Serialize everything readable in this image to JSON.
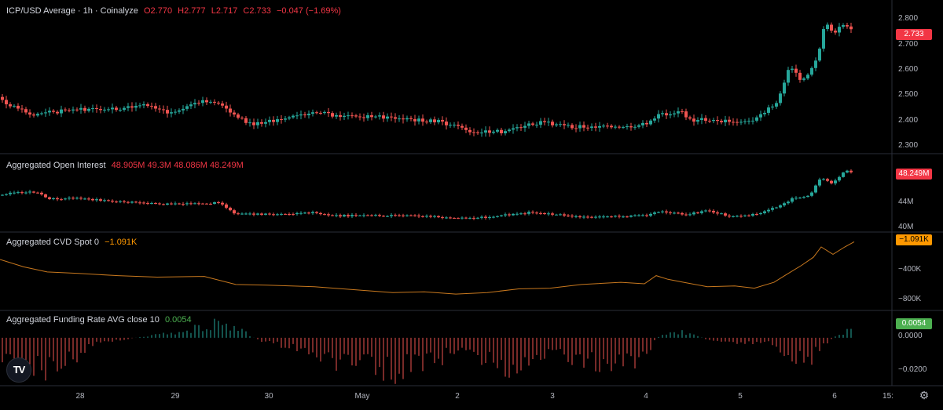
{
  "headers": {
    "price": {
      "label": "ICP/USD Average · 1h · Coinalyze",
      "o": "O2.770",
      "h": "H2.777",
      "l": "L2.717",
      "c": "C2.733",
      "chg": "−0.047 (−1.69%)"
    },
    "oi": {
      "label": "Aggregated Open Interest",
      "vals": "48.905M 49.3M 48.086M 48.249M"
    },
    "cvd": {
      "label": "Aggregated CVD Spot 0",
      "val": "−1.091K"
    },
    "funding": {
      "label": "Aggregated Funding Rate AVG close 10",
      "val": "0.0054"
    }
  },
  "badges": {
    "price": "2.733",
    "oi": "48.249M",
    "cvd": "−1.091K",
    "funding": "0.0054"
  },
  "colors": {
    "up": "#26a69a",
    "down": "#ef5350",
    "cvd_line": "#c8781e",
    "badge_red": "#f23645",
    "badge_orange": "#ff9800",
    "badge_green": "#4caf50",
    "grid": "#2a2e39"
  },
  "icons": {
    "logo": "tradingview-logo-icon",
    "settings": "gear-icon"
  },
  "logo_text": "TV",
  "chart_data": {
    "type": "candlestick",
    "x_axis": {
      "ticks": [
        "28",
        "29",
        "30",
        "May",
        "2",
        "3",
        "4",
        "5",
        "6",
        "15:"
      ]
    },
    "panels": [
      {
        "name": "ICP/USD Average",
        "type": "candlestick",
        "ylim": [
          2.26,
          2.83
        ],
        "y_ticks": [
          "2.800",
          "2.700",
          "2.600",
          "2.500",
          "2.400",
          "2.300"
        ],
        "keypoints": [
          [
            0,
            2.47
          ],
          [
            8,
            2.44
          ],
          [
            40,
            2.4
          ],
          [
            100,
            2.42
          ],
          [
            150,
            2.42
          ],
          [
            180,
            2.44
          ],
          [
            220,
            2.4
          ],
          [
            245,
            2.45
          ],
          [
            280,
            2.45
          ],
          [
            300,
            2.39
          ],
          [
            320,
            2.36
          ],
          [
            360,
            2.38
          ],
          [
            405,
            2.41
          ],
          [
            430,
            2.39
          ],
          [
            480,
            2.39
          ],
          [
            520,
            2.38
          ],
          [
            560,
            2.37
          ],
          [
            600,
            2.33
          ],
          [
            640,
            2.33
          ],
          [
            690,
            2.37
          ],
          [
            720,
            2.35
          ],
          [
            790,
            2.35
          ],
          [
            825,
            2.36
          ],
          [
            840,
            2.4
          ],
          [
            868,
            2.41
          ],
          [
            880,
            2.37
          ],
          [
            895,
            2.38
          ],
          [
            935,
            2.37
          ],
          [
            960,
            2.38
          ],
          [
            990,
            2.45
          ],
          [
            1005,
            2.6
          ],
          [
            1020,
            2.53
          ],
          [
            1040,
            2.62
          ],
          [
            1050,
            2.78
          ],
          [
            1060,
            2.72
          ],
          [
            1075,
            2.77
          ],
          [
            1087,
            2.73
          ]
        ]
      },
      {
        "name": "Aggregated Open Interest",
        "type": "candlestick",
        "ylim": [
          39,
          50
        ],
        "y_ticks": [
          "44M",
          "40M"
        ],
        "keypoints": [
          [
            0,
            44.5
          ],
          [
            20,
            45.0
          ],
          [
            50,
            45.0
          ],
          [
            60,
            43.8
          ],
          [
            100,
            44.0
          ],
          [
            140,
            43.5
          ],
          [
            200,
            43.0
          ],
          [
            240,
            43.0
          ],
          [
            280,
            43.2
          ],
          [
            300,
            41.3
          ],
          [
            340,
            41.2
          ],
          [
            400,
            41.5
          ],
          [
            420,
            41.0
          ],
          [
            480,
            41.0
          ],
          [
            520,
            41.0
          ],
          [
            600,
            40.5
          ],
          [
            680,
            41.6
          ],
          [
            740,
            40.8
          ],
          [
            800,
            40.9
          ],
          [
            825,
            41.0
          ],
          [
            840,
            41.8
          ],
          [
            870,
            41.2
          ],
          [
            900,
            41.8
          ],
          [
            930,
            40.9
          ],
          [
            960,
            41.2
          ],
          [
            990,
            42.5
          ],
          [
            1010,
            44.0
          ],
          [
            1030,
            44.5
          ],
          [
            1045,
            47.5
          ],
          [
            1060,
            46.5
          ],
          [
            1075,
            48.8
          ],
          [
            1087,
            48.25
          ]
        ]
      },
      {
        "name": "Aggregated CVD Spot",
        "type": "line",
        "ylim": [
          -900,
          80
        ],
        "y_ticks": [
          "−400K",
          "−800K"
        ],
        "values": [
          [
            0,
            -250
          ],
          [
            30,
            -350
          ],
          [
            60,
            -420
          ],
          [
            100,
            -440
          ],
          [
            150,
            -470
          ],
          [
            200,
            -490
          ],
          [
            260,
            -480
          ],
          [
            300,
            -590
          ],
          [
            340,
            -600
          ],
          [
            400,
            -620
          ],
          [
            450,
            -660
          ],
          [
            500,
            -700
          ],
          [
            540,
            -690
          ],
          [
            580,
            -720
          ],
          [
            620,
            -700
          ],
          [
            660,
            -650
          ],
          [
            700,
            -640
          ],
          [
            740,
            -590
          ],
          [
            790,
            -560
          ],
          [
            820,
            -580
          ],
          [
            835,
            -470
          ],
          [
            850,
            -520
          ],
          [
            870,
            -560
          ],
          [
            900,
            -620
          ],
          [
            935,
            -610
          ],
          [
            960,
            -640
          ],
          [
            985,
            -560
          ],
          [
            1000,
            -460
          ],
          [
            1020,
            -330
          ],
          [
            1035,
            -220
          ],
          [
            1045,
            -80
          ],
          [
            1060,
            -180
          ],
          [
            1075,
            -80
          ],
          [
            1087,
            -10
          ]
        ]
      },
      {
        "name": "Aggregated Funding Rate",
        "type": "histogram",
        "ylim": [
          -0.03,
          0.012
        ],
        "y_ticks": [
          "0.0000",
          "−0.0200"
        ],
        "keypoints": [
          [
            0,
            -0.012
          ],
          [
            40,
            -0.018
          ],
          [
            75,
            -0.022
          ],
          [
            100,
            -0.012
          ],
          [
            120,
            -0.003
          ],
          [
            160,
            -0.001
          ],
          [
            185,
            0.001
          ],
          [
            230,
            0.004
          ],
          [
            270,
            0.0095
          ],
          [
            310,
            0.004
          ],
          [
            330,
            -0.002
          ],
          [
            370,
            -0.006
          ],
          [
            400,
            -0.01
          ],
          [
            440,
            -0.018
          ],
          [
            470,
            -0.019
          ],
          [
            500,
            -0.022
          ],
          [
            540,
            -0.017
          ],
          [
            580,
            -0.01
          ],
          [
            620,
            -0.015
          ],
          [
            650,
            -0.02
          ],
          [
            680,
            -0.012
          ],
          [
            700,
            -0.009
          ],
          [
            740,
            -0.015
          ],
          [
            780,
            -0.021
          ],
          [
            820,
            -0.012
          ],
          [
            840,
            0.002
          ],
          [
            870,
            0.004
          ],
          [
            900,
            -0.001
          ],
          [
            940,
            -0.003
          ],
          [
            980,
            -0.004
          ],
          [
            1010,
            -0.012
          ],
          [
            1030,
            -0.015
          ],
          [
            1050,
            -0.004
          ],
          [
            1065,
            0.002
          ],
          [
            1080,
            0.005
          ],
          [
            1087,
            0.0054
          ]
        ]
      }
    ]
  }
}
